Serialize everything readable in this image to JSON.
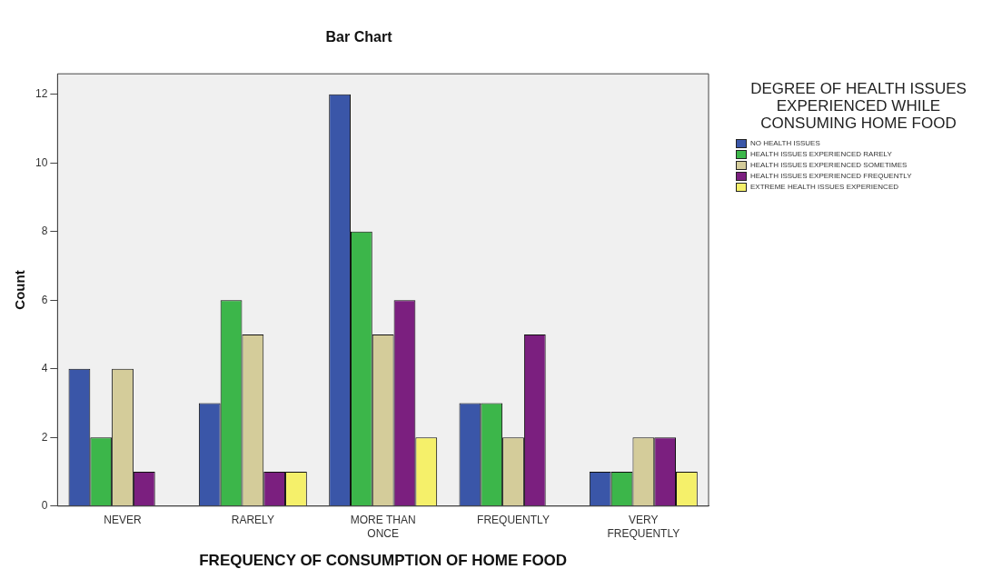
{
  "chart_data": {
    "type": "bar",
    "title": "Bar Chart",
    "xlabel": "FREQUENCY OF CONSUMPTION OF HOME FOOD",
    "ylabel": "Count",
    "legend_title": "DEGREE OF HEALTH ISSUES EXPERIENCED WHILE CONSUMING HOME FOOD",
    "legend": "right",
    "grid": false,
    "categories": [
      "NEVER",
      "RARELY",
      "MORE THAN ONCE",
      "FREQUENTLY",
      "VERY FREQUENTLY"
    ],
    "ylim": [
      0,
      12.6
    ],
    "yticks": [
      0,
      2,
      4,
      6,
      8,
      10,
      12
    ],
    "series": [
      {
        "name": "NO HEALTH ISSUES",
        "color": "#3a56a8",
        "values": [
          4,
          3,
          12,
          3,
          1
        ]
      },
      {
        "name": "HEALTH ISSUES EXPERIENCED RARELY",
        "color": "#3cb64a",
        "values": [
          2,
          6,
          8,
          3,
          1
        ]
      },
      {
        "name": "HEALTH ISSUES EXPERIENCED SOMETIMES",
        "color": "#d4cc9a",
        "values": [
          4,
          5,
          5,
          2,
          2
        ]
      },
      {
        "name": "HEALTH ISSUES EXPERIENCED FREQUENTLY",
        "color": "#7b1f7f",
        "values": [
          1,
          1,
          6,
          5,
          2
        ]
      },
      {
        "name": "EXTREME HEALTH ISSUES EXPERIENCED",
        "color": "#f5f06a",
        "values": [
          null,
          1,
          2,
          null,
          1
        ]
      }
    ]
  }
}
